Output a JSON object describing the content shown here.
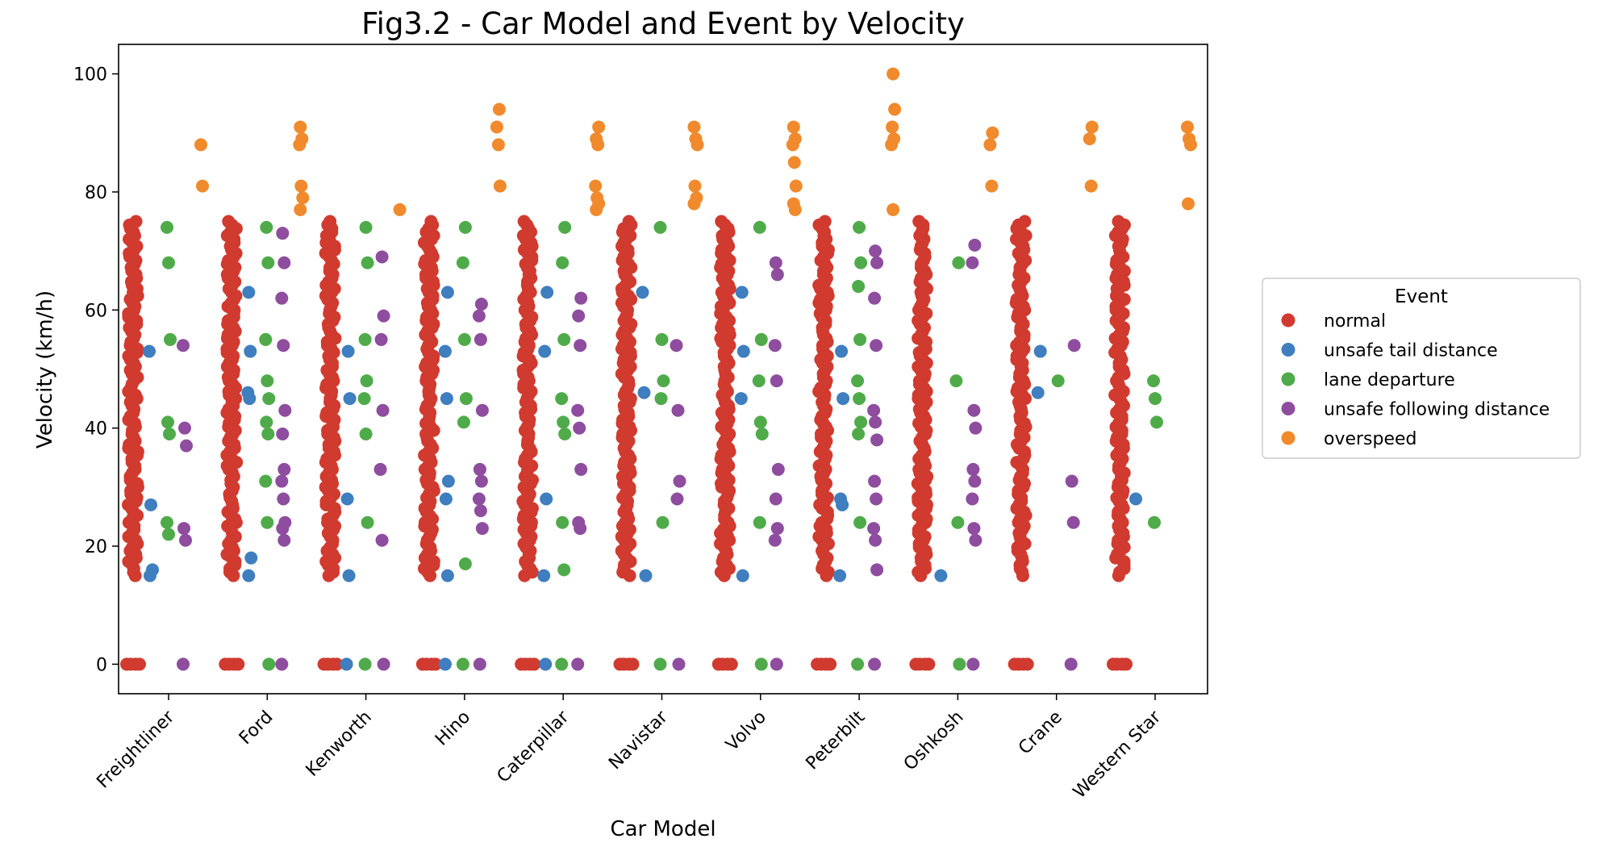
{
  "chart_data": {
    "type": "scatter",
    "title": "Fig3.2 - Car Model and Event by Velocity",
    "xlabel": "Car Model",
    "ylabel": "Velocity (km/h)",
    "ylim": [
      -5,
      105
    ],
    "yticks": [
      0,
      20,
      40,
      60,
      80,
      100
    ],
    "grid": false,
    "legend": {
      "title": "Event",
      "placement": "center-right-outside"
    },
    "categories": [
      "Freightliner",
      "Ford",
      "Kenworth",
      "Hino",
      "Caterpillar",
      "Navistar",
      "Volvo",
      "Peterbilt",
      "Oshkosh",
      "Crane",
      "Western Star"
    ],
    "series": [
      {
        "name": "normal",
        "color": "#d13a2f",
        "bands": {
          "from": 15,
          "to": 75,
          "also": [
            0
          ]
        },
        "categories_present": [
          "Freightliner",
          "Ford",
          "Kenworth",
          "Hino",
          "Caterpillar",
          "Navistar",
          "Volvo",
          "Peterbilt",
          "Oshkosh",
          "Crane",
          "Western Star"
        ]
      },
      {
        "name": "unsafe tail distance",
        "color": "#3f7ebf",
        "values": {
          "Freightliner": [
            53,
            27,
            16,
            15
          ],
          "Ford": [
            63,
            53,
            46,
            45,
            18,
            15
          ],
          "Kenworth": [
            53,
            45,
            28,
            15,
            0
          ],
          "Hino": [
            63,
            53,
            45,
            31,
            28,
            15,
            0
          ],
          "Caterpillar": [
            63,
            53,
            28,
            15,
            0
          ],
          "Navistar": [
            63,
            46,
            15
          ],
          "Volvo": [
            63,
            53,
            45,
            15
          ],
          "Peterbilt": [
            53,
            45,
            28,
            27,
            15
          ],
          "Oshkosh": [
            15
          ],
          "Crane": [
            53,
            46
          ],
          "Western Star": [
            28
          ]
        }
      },
      {
        "name": "lane departure",
        "color": "#4fab4a",
        "values": {
          "Freightliner": [
            74,
            68,
            55,
            41,
            39,
            24,
            22
          ],
          "Ford": [
            74,
            68,
            55,
            48,
            45,
            41,
            39,
            31,
            24,
            0
          ],
          "Kenworth": [
            74,
            68,
            55,
            48,
            45,
            39,
            24,
            0
          ],
          "Hino": [
            74,
            68,
            55,
            45,
            41,
            17,
            0
          ],
          "Caterpillar": [
            74,
            68,
            55,
            45,
            41,
            39,
            24,
            16,
            0
          ],
          "Navistar": [
            74,
            55,
            48,
            45,
            24,
            0
          ],
          "Volvo": [
            74,
            55,
            48,
            41,
            39,
            24,
            0
          ],
          "Peterbilt": [
            74,
            68,
            64,
            55,
            48,
            45,
            41,
            39,
            24,
            0
          ],
          "Oshkosh": [
            68,
            48,
            24,
            0
          ],
          "Crane": [
            48
          ],
          "Western Star": [
            48,
            45,
            41,
            24
          ]
        }
      },
      {
        "name": "unsafe following distance",
        "color": "#8e4d9e",
        "values": {
          "Freightliner": [
            54,
            40,
            37,
            23,
            21,
            0
          ],
          "Ford": [
            73,
            68,
            62,
            54,
            43,
            39,
            33,
            31,
            28,
            24,
            23,
            21,
            0
          ],
          "Kenworth": [
            69,
            59,
            55,
            43,
            33,
            21,
            0
          ],
          "Hino": [
            61,
            59,
            55,
            43,
            33,
            31,
            28,
            26,
            23,
            0
          ],
          "Caterpillar": [
            62,
            59,
            54,
            43,
            40,
            33,
            24,
            23,
            0
          ],
          "Navistar": [
            54,
            43,
            31,
            28,
            0
          ],
          "Volvo": [
            68,
            66,
            54,
            48,
            33,
            28,
            23,
            21,
            0
          ],
          "Peterbilt": [
            70,
            68,
            62,
            54,
            43,
            41,
            38,
            31,
            28,
            23,
            21,
            16,
            0
          ],
          "Oshkosh": [
            71,
            68,
            43,
            40,
            33,
            31,
            28,
            23,
            21,
            0
          ],
          "Crane": [
            54,
            31,
            24,
            0
          ],
          "Western Star": []
        }
      },
      {
        "name": "overspeed",
        "color": "#f08a2c",
        "values": {
          "Freightliner": [
            88,
            81
          ],
          "Ford": [
            91,
            89,
            88,
            81,
            79,
            77
          ],
          "Kenworth": [
            77
          ],
          "Hino": [
            94,
            91,
            88,
            81
          ],
          "Caterpillar": [
            91,
            89,
            88,
            81,
            79,
            78,
            77
          ],
          "Navistar": [
            91,
            89,
            88,
            81,
            79,
            78
          ],
          "Volvo": [
            91,
            89,
            88,
            85,
            81,
            78,
            77
          ],
          "Peterbilt": [
            100,
            94,
            91,
            89,
            88,
            77
          ],
          "Oshkosh": [
            90,
            88,
            81
          ],
          "Crane": [
            91,
            89,
            81
          ],
          "Western Star": [
            91,
            89,
            88,
            78
          ]
        }
      }
    ]
  }
}
